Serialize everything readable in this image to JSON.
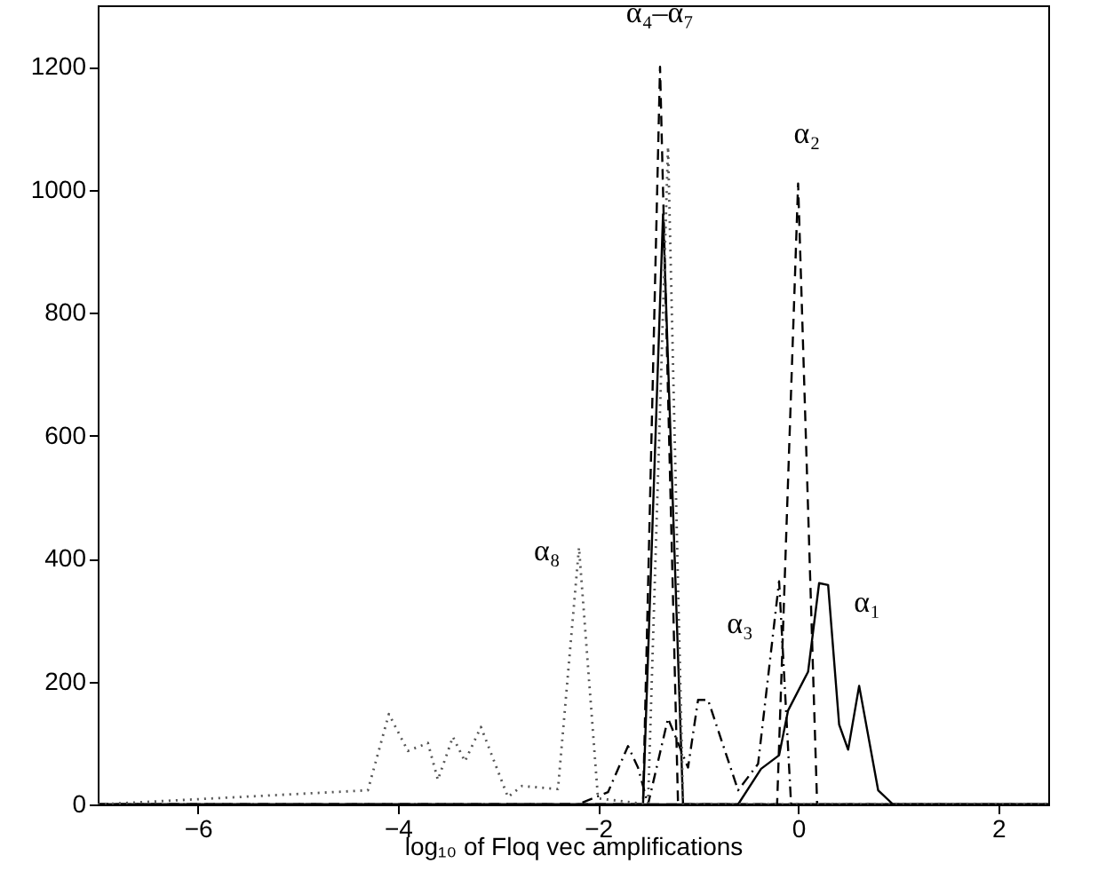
{
  "chart_data": {
    "type": "line",
    "xlabel": "log₁₀ of Floq vec amplifications",
    "xlim": [
      -7,
      2.5
    ],
    "ylim": [
      0,
      1300
    ],
    "xticks": [
      -6,
      -4,
      -2,
      0,
      2
    ],
    "yticks": [
      0,
      200,
      400,
      600,
      800,
      1000,
      1200
    ],
    "grid": false,
    "marker": "none",
    "series": [
      {
        "color": "#000000",
        "line_style": "solid",
        "x": [
          -7,
          -0.7,
          -0.6,
          -0.37,
          -0.19,
          -0.1,
          0.1,
          0.21,
          0.3,
          0.41,
          0.5,
          0.61,
          0.8,
          0.95,
          2.5
        ],
        "values": [
          0,
          0,
          0,
          58,
          80,
          153,
          216,
          360,
          357,
          130,
          89,
          193,
          23,
          0,
          0
        ]
      },
      {
        "color": "#000000",
        "line_style": "dashed",
        "x": [
          -7,
          -0.21,
          0.0,
          0.19,
          2.5
        ],
        "values": [
          0,
          0,
          1010,
          0,
          0
        ]
      },
      {
        "color": "#000000",
        "line_style": "dashdot",
        "x": [
          -7,
          -2.2,
          -1.9,
          -1.7,
          -1.6,
          -1.5,
          -1.3,
          -1.2,
          -1.1,
          -1.0,
          -0.9,
          -0.6,
          -0.4,
          -0.19,
          -0.07,
          2.5
        ],
        "values": [
          0,
          0,
          20,
          95,
          60,
          0,
          140,
          100,
          60,
          170,
          170,
          23,
          66,
          363,
          0,
          0
        ]
      },
      {
        "color": "#000000",
        "line_style": "solid",
        "x": [
          -7,
          -1.55,
          -1.35,
          -1.15,
          2.5
        ],
        "values": [
          0,
          0,
          960,
          0,
          0
        ]
      },
      {
        "color": "#000000",
        "line_style": "dashed",
        "x": [
          -7,
          -1.55,
          -1.38,
          -1.2,
          2.5
        ],
        "values": [
          0,
          0,
          1200,
          0,
          0
        ]
      },
      {
        "color": "#555555",
        "line_style": "dotted",
        "x": [
          -7,
          -4.3,
          -4.09,
          -3.9,
          -3.7,
          -3.6,
          -3.45,
          -3.33,
          -3.17,
          -2.9,
          -2.76,
          -2.4,
          -2.19,
          -2.0,
          -1.5,
          -1.3,
          -1.15,
          2.5
        ],
        "values": [
          0,
          23,
          147,
          87,
          100,
          40,
          110,
          70,
          126,
          12,
          30,
          25,
          418,
          10,
          0,
          1070,
          0,
          0
        ]
      }
    ],
    "annotations": [
      {
        "text": "α₁",
        "x": 0.3,
        "y": 357
      },
      {
        "text": "α₂",
        "x": 0.0,
        "y": 1010
      },
      {
        "text": "α₃",
        "x": -0.19,
        "y": 363
      },
      {
        "text": "α₈",
        "x": -2.19,
        "y": 418
      },
      {
        "text": "α₄–α₇",
        "x": -1.38,
        "y": 1200
      }
    ]
  }
}
